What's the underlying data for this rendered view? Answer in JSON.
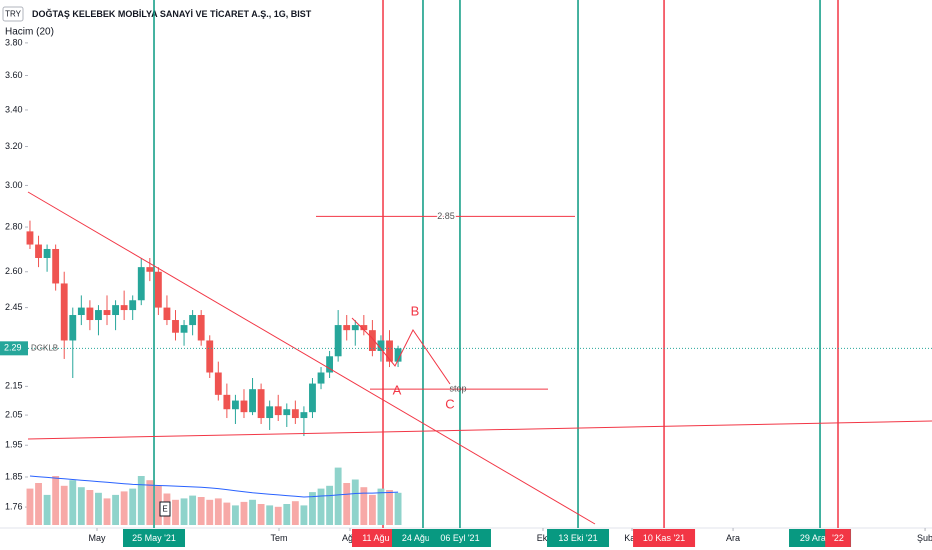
{
  "header": {
    "currency": "TRY",
    "title": "DOĞTAŞ KELEBEK MOBİLYA SANAYİ VE TİCARET A.Ş., 1G, BIST",
    "indicator": "Hacim (20)"
  },
  "chart_data": {
    "type": "candlestick",
    "log_scale": true,
    "ylim": [
      1.7,
      4.08
    ],
    "yticks": [
      {
        "value": 3.8,
        "label": "3.80"
      },
      {
        "value": 3.6,
        "label": "3.60"
      },
      {
        "value": 3.4,
        "label": "3.40"
      },
      {
        "value": 3.2,
        "label": "3.20"
      },
      {
        "value": 3.0,
        "label": "3.00"
      },
      {
        "value": 2.8,
        "label": "2.80"
      },
      {
        "value": 2.6,
        "label": "2.60"
      },
      2.45,
      2.15,
      2.05,
      1.95,
      1.85,
      1.76
    ],
    "xlim": [
      -0.23,
      105.37
    ],
    "xticks": [
      {
        "value": 7.83,
        "label": "May"
      },
      {
        "value": 14.49,
        "label": "25 May '21",
        "color": "#089981"
      },
      {
        "value": 29.09,
        "label": "Tem"
      },
      {
        "value": 37.38,
        "label": "Ağu"
      },
      {
        "value": 41.24,
        "label": "11 Ağu '21",
        "color": "#f23645"
      },
      {
        "value": 45.91,
        "label": "24 Ağu '21",
        "color": "#089981"
      },
      {
        "value": 50.23,
        "label": "06 Eyl '21",
        "color": "#089981"
      },
      {
        "value": 59.93,
        "label": "Eki"
      },
      {
        "value": 64.02,
        "label": "13 Eki '21",
        "color": "#089981"
      },
      {
        "value": 70.33,
        "label": "Kas"
      },
      {
        "value": 74.07,
        "label": "10 Kas '21",
        "color": "#f23645"
      },
      {
        "value": 82.13,
        "label": "Ara"
      },
      {
        "value": 92.29,
        "label": "29 Ara '21",
        "color": "#089981"
      },
      {
        "value": 94.39,
        "label": "'22",
        "color": "#f23645"
      },
      {
        "value": 104.56,
        "label": "Şub"
      }
    ],
    "ohlc": [
      [
        2.78,
        2.83,
        2.7,
        2.72
      ],
      [
        2.72,
        2.76,
        2.62,
        2.66
      ],
      [
        2.66,
        2.72,
        2.6,
        2.7
      ],
      [
        2.7,
        2.72,
        2.52,
        2.55
      ],
      [
        2.55,
        2.6,
        2.25,
        2.32
      ],
      [
        2.32,
        2.45,
        2.18,
        2.42
      ],
      [
        2.42,
        2.5,
        2.38,
        2.45
      ],
      [
        2.45,
        2.48,
        2.36,
        2.4
      ],
      [
        2.4,
        2.46,
        2.34,
        2.44
      ],
      [
        2.44,
        2.5,
        2.38,
        2.42
      ],
      [
        2.42,
        2.48,
        2.36,
        2.46
      ],
      [
        2.46,
        2.52,
        2.4,
        2.44
      ],
      [
        2.44,
        2.5,
        2.4,
        2.48
      ],
      [
        2.48,
        2.66,
        2.46,
        2.62
      ],
      [
        2.62,
        2.66,
        2.56,
        2.6
      ],
      [
        2.6,
        2.62,
        2.42,
        2.45
      ],
      [
        2.45,
        2.5,
        2.38,
        2.4
      ],
      [
        2.4,
        2.44,
        2.32,
        2.35
      ],
      [
        2.35,
        2.4,
        2.3,
        2.38
      ],
      [
        2.38,
        2.44,
        2.34,
        2.42
      ],
      [
        2.42,
        2.44,
        2.3,
        2.32
      ],
      [
        2.32,
        2.34,
        2.18,
        2.2
      ],
      [
        2.2,
        2.24,
        2.1,
        2.12
      ],
      [
        2.12,
        2.16,
        2.04,
        2.07
      ],
      [
        2.07,
        2.12,
        2.02,
        2.1
      ],
      [
        2.1,
        2.14,
        2.04,
        2.06
      ],
      [
        2.06,
        2.18,
        2.05,
        2.14
      ],
      [
        2.14,
        2.16,
        2.02,
        2.04
      ],
      [
        2.04,
        2.1,
        2.0,
        2.08
      ],
      [
        2.08,
        2.12,
        2.03,
        2.05
      ],
      [
        2.05,
        2.09,
        2.01,
        2.07
      ],
      [
        2.07,
        2.1,
        2.02,
        2.04
      ],
      [
        2.04,
        2.08,
        1.98,
        2.06
      ],
      [
        2.06,
        2.18,
        2.04,
        2.16
      ],
      [
        2.16,
        2.22,
        2.14,
        2.2
      ],
      [
        2.2,
        2.28,
        2.18,
        2.26
      ],
      [
        2.26,
        2.44,
        2.24,
        2.38
      ],
      [
        2.38,
        2.42,
        2.32,
        2.36
      ],
      [
        2.36,
        2.4,
        2.3,
        2.38
      ],
      [
        2.38,
        2.42,
        2.34,
        2.36
      ],
      [
        2.36,
        2.4,
        2.26,
        2.28
      ],
      [
        2.28,
        2.34,
        2.24,
        2.32
      ],
      [
        2.32,
        2.36,
        2.22,
        2.24
      ],
      [
        2.24,
        2.3,
        2.22,
        2.29
      ]
    ],
    "volume_lim": [
      0,
      1000
    ],
    "volume": [
      520,
      600,
      430,
      700,
      560,
      640,
      540,
      500,
      460,
      380,
      430,
      480,
      520,
      700,
      640,
      560,
      450,
      360,
      380,
      420,
      400,
      360,
      380,
      320,
      280,
      330,
      360,
      300,
      280,
      260,
      300,
      340,
      280,
      470,
      520,
      560,
      820,
      600,
      650,
      540,
      430,
      520,
      500,
      460
    ],
    "volume_ma": [
      700,
      690,
      680,
      670,
      660,
      650,
      640,
      630,
      620,
      610,
      600,
      590,
      580,
      575,
      570,
      565,
      560,
      555,
      550,
      545,
      540,
      530,
      520,
      505,
      490,
      475,
      460,
      450,
      440,
      430,
      420,
      410,
      400,
      405,
      415,
      420,
      430,
      440,
      450,
      455,
      455,
      460,
      465,
      470
    ],
    "last_price": 2.29,
    "symbol": "DGKLB",
    "hlines": [
      2.85
    ],
    "annotations": [
      {
        "text": "stop",
        "value": 2.14
      }
    ],
    "wave_labels": [
      "A",
      "B",
      "C"
    ]
  }
}
